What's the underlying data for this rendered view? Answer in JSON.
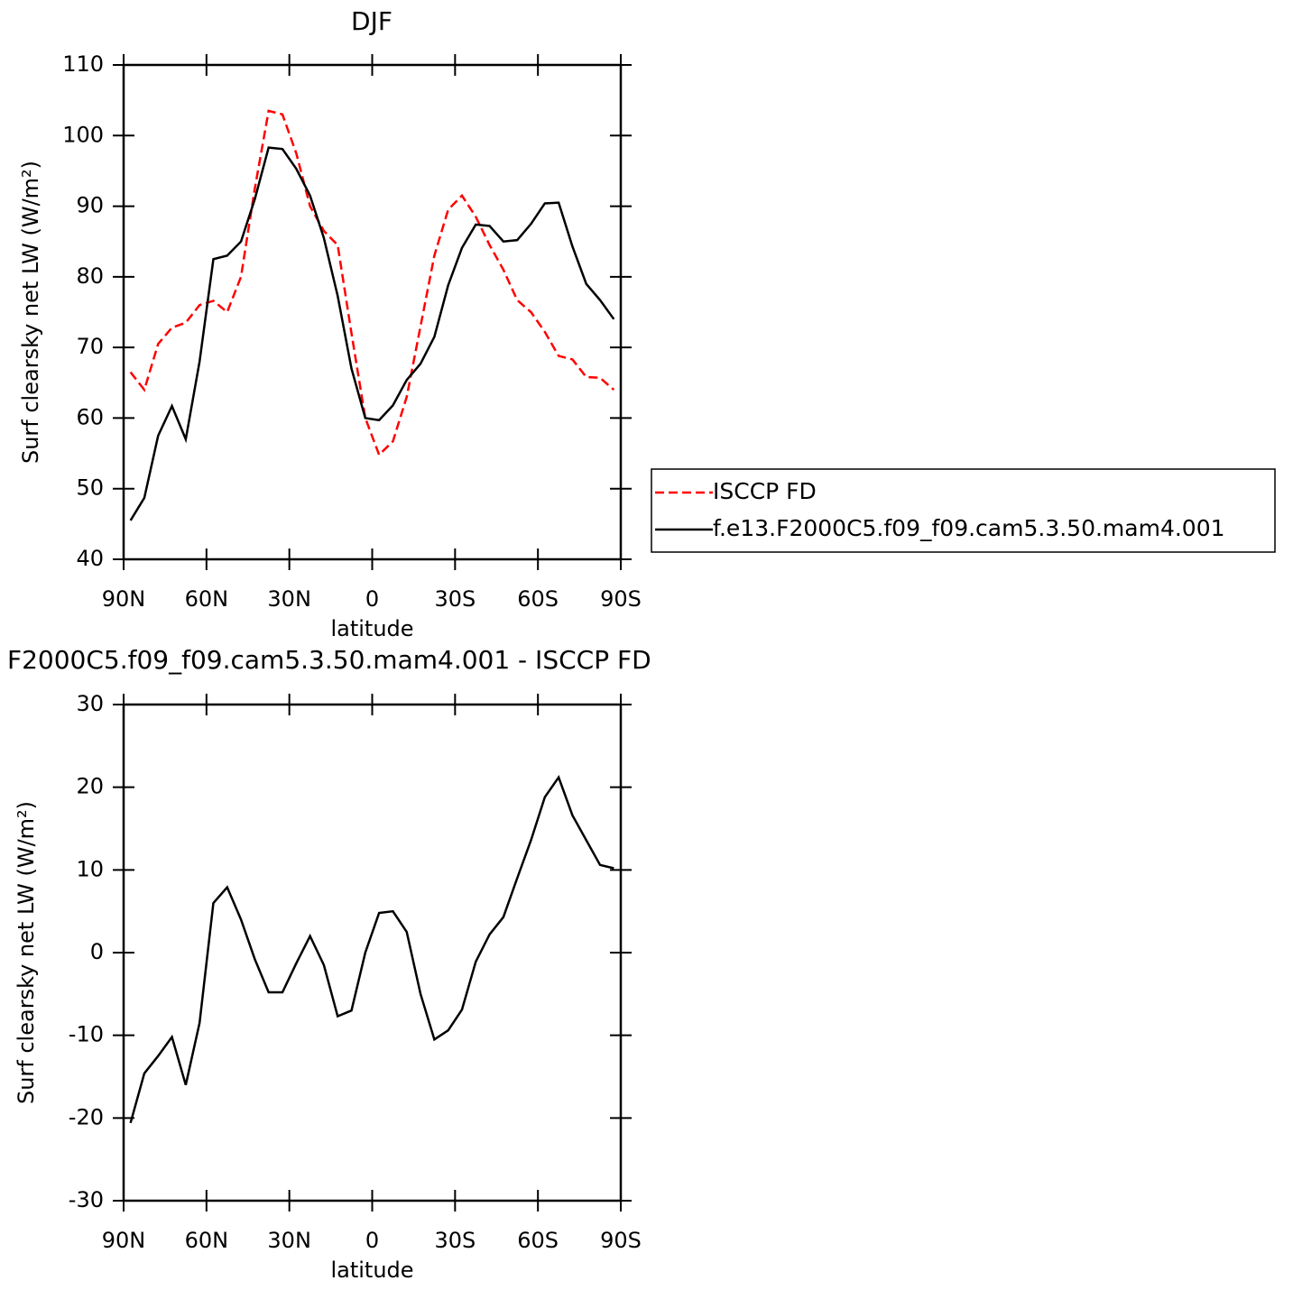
{
  "chart_data": [
    {
      "type": "line",
      "title": "DJF",
      "xlabel": "latitude",
      "ylabel": "Surf clearsky net LW (W/m²)",
      "x": [
        87.5,
        82.5,
        77.5,
        72.5,
        67.5,
        62.5,
        57.5,
        52.5,
        47.5,
        42.5,
        37.5,
        32.5,
        27.5,
        22.5,
        17.5,
        12.5,
        7.5,
        2.5,
        -2.5,
        -7.5,
        -12.5,
        -17.5,
        -22.5,
        -27.5,
        -32.5,
        -37.5,
        -42.5,
        -47.5,
        -52.5,
        -57.5,
        -62.5,
        -67.5,
        -72.5,
        -77.5,
        -82.5,
        -87.5
      ],
      "series": [
        {
          "name": "ISCCP FD",
          "color": "#ff0000",
          "linestyle": "dashed",
          "values": [
            66.5,
            64,
            70.5,
            72.8,
            73.5,
            76,
            76.6,
            75,
            80,
            92.5,
            103.5,
            103,
            97.5,
            90,
            86.5,
            84.5,
            72,
            60,
            54.8,
            56.7,
            63,
            73,
            83,
            89.5,
            91.5,
            88.5,
            84.5,
            81,
            76.7,
            75,
            72.2,
            68.8,
            68.3,
            65.8,
            65.7,
            64
          ]
        },
        {
          "name": "f.e13.F2000C5.f09_f09.cam5.3.50.mam4.001",
          "color": "#000000",
          "linestyle": "solid",
          "values": [
            45.5,
            48.7,
            57.5,
            61.7,
            57,
            68,
            82.5,
            83,
            85,
            91,
            98.3,
            98.1,
            95.3,
            91.5,
            85.5,
            77.3,
            67,
            60,
            59.7,
            61.8,
            65.4,
            67.7,
            71.5,
            78.8,
            84.1,
            87.4,
            87.2,
            85,
            85.2,
            87.5,
            90.4,
            90.5,
            84.3,
            79,
            76.7,
            74
          ]
        }
      ],
      "xlim": [
        90,
        -90
      ],
      "xticks": [
        {
          "value": 90,
          "label": "90N"
        },
        {
          "value": 60,
          "label": "60N"
        },
        {
          "value": 30,
          "label": "30N"
        },
        0,
        {
          "value": -30,
          "label": "30S"
        },
        {
          "value": -60,
          "label": "60S"
        },
        {
          "value": -90,
          "label": "90S"
        }
      ],
      "ylim": [
        40,
        110
      ],
      "yticks": [
        40,
        50,
        60,
        70,
        80,
        90,
        100,
        110
      ],
      "legend": "right"
    },
    {
      "type": "line",
      "title": "F2000C5.f09_f09.cam5.3.50.mam4.001 - ISCCP FD",
      "xlabel": "latitude",
      "ylabel": "Surf clearsky net LW (W/m²)",
      "x": [
        87.5,
        82.5,
        77.5,
        72.5,
        67.5,
        62.5,
        57.5,
        52.5,
        47.5,
        42.5,
        37.5,
        32.5,
        27.5,
        22.5,
        17.5,
        12.5,
        7.5,
        2.5,
        -2.5,
        -7.5,
        -12.5,
        -17.5,
        -22.5,
        -27.5,
        -32.5,
        -37.5,
        -42.5,
        -47.5,
        -52.5,
        -57.5,
        -62.5,
        -67.5,
        -72.5,
        -77.5,
        -82.5,
        -87.5
      ],
      "values": [
        -20.6,
        -14.6,
        -12.5,
        -10.2,
        -16,
        -8.5,
        6,
        7.9,
        4,
        -0.8,
        -4.8,
        -4.8,
        -1.3,
        2,
        -1.5,
        -7.7,
        -7,
        0,
        4.8,
        5,
        2.5,
        -5,
        -10.5,
        -9.4,
        -6.9,
        -1.1,
        2.2,
        4.3,
        9,
        13.6,
        18.8,
        21.2,
        16.6,
        13.6,
        10.6,
        10.2
      ],
      "color": "#000000",
      "xlim": [
        90,
        -90
      ],
      "xticks": [
        {
          "value": 90,
          "label": "90N"
        },
        {
          "value": 60,
          "label": "60N"
        },
        {
          "value": 30,
          "label": "30N"
        },
        0,
        {
          "value": -30,
          "label": "30S"
        },
        {
          "value": -60,
          "label": "60S"
        },
        {
          "value": -90,
          "label": "90S"
        }
      ],
      "ylim": [
        -30,
        30
      ],
      "yticks": [
        -30,
        -20,
        -10,
        0,
        10,
        20,
        30
      ]
    }
  ]
}
